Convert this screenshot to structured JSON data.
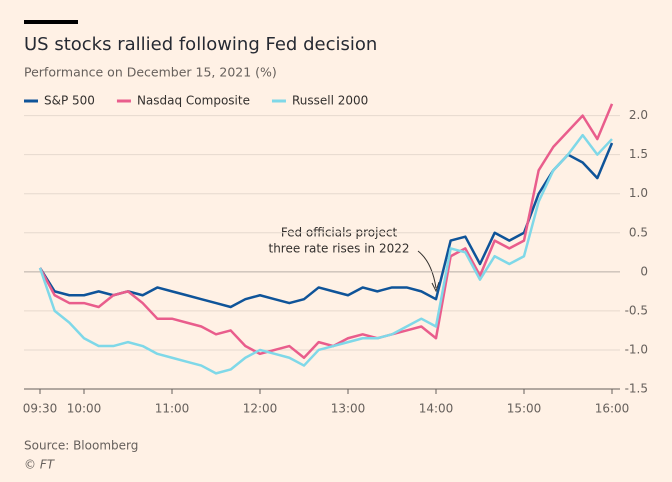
{
  "chart_data": {
    "type": "line",
    "title": "US stocks rallied following Fed decision",
    "subtitle": "Performance on December 15, 2021 (%)",
    "source": "Source: Bloomberg",
    "credit": "© FT",
    "annotation": [
      "Fed officials project",
      "three rate rises in 2022"
    ],
    "x": [
      "09:30",
      "09:40",
      "09:50",
      "10:00",
      "10:10",
      "10:20",
      "10:30",
      "10:40",
      "10:50",
      "11:00",
      "11:10",
      "11:20",
      "11:30",
      "11:40",
      "11:50",
      "12:00",
      "12:10",
      "12:20",
      "12:30",
      "12:40",
      "12:50",
      "13:00",
      "13:10",
      "13:20",
      "13:30",
      "13:40",
      "13:50",
      "14:00",
      "14:10",
      "14:20",
      "14:30",
      "14:40",
      "14:50",
      "15:00",
      "15:10",
      "15:20",
      "15:30",
      "15:40",
      "15:50",
      "16:00"
    ],
    "xticks": [
      "09:30",
      "10:00",
      "11:00",
      "12:00",
      "13:00",
      "14:00",
      "15:00",
      "16:00"
    ],
    "series": [
      {
        "name": "S&P 500",
        "color": "#0f5499",
        "values": [
          0.05,
          -0.25,
          -0.3,
          -0.3,
          -0.25,
          -0.3,
          -0.25,
          -0.3,
          -0.2,
          -0.25,
          -0.3,
          -0.35,
          -0.4,
          -0.45,
          -0.35,
          -0.3,
          -0.35,
          -0.4,
          -0.35,
          -0.2,
          -0.25,
          -0.3,
          -0.2,
          -0.25,
          -0.2,
          -0.2,
          -0.25,
          -0.35,
          0.4,
          0.45,
          0.1,
          0.5,
          0.4,
          0.5,
          1.0,
          1.3,
          1.5,
          1.4,
          1.2,
          1.65
        ]
      },
      {
        "name": "Nasdaq Composite",
        "color": "#e95d8c",
        "values": [
          0.05,
          -0.3,
          -0.4,
          -0.4,
          -0.45,
          -0.3,
          -0.25,
          -0.4,
          -0.6,
          -0.6,
          -0.65,
          -0.7,
          -0.8,
          -0.75,
          -0.95,
          -1.05,
          -1.0,
          -0.95,
          -1.1,
          -0.9,
          -0.95,
          -0.85,
          -0.8,
          -0.85,
          -0.8,
          -0.75,
          -0.7,
          -0.85,
          0.2,
          0.3,
          -0.05,
          0.4,
          0.3,
          0.4,
          1.3,
          1.6,
          1.8,
          2.0,
          1.7,
          2.15
        ]
      },
      {
        "name": "Russell 2000",
        "color": "#7fd8e8",
        "values": [
          0.05,
          -0.5,
          -0.65,
          -0.85,
          -0.95,
          -0.95,
          -0.9,
          -0.95,
          -1.05,
          -1.1,
          -1.15,
          -1.2,
          -1.3,
          -1.25,
          -1.1,
          -1.0,
          -1.05,
          -1.1,
          -1.2,
          -1.0,
          -0.95,
          -0.9,
          -0.85,
          -0.85,
          -0.8,
          -0.7,
          -0.6,
          -0.7,
          0.3,
          0.25,
          -0.1,
          0.2,
          0.1,
          0.2,
          0.9,
          1.3,
          1.5,
          1.75,
          1.5,
          1.7
        ]
      }
    ],
    "ylim": [
      -1.5,
      2.2
    ],
    "yticks": [
      {
        "value": 2,
        "label": "2.0"
      },
      1.5,
      {
        "value": 1,
        "label": "1.0"
      },
      0.5,
      0,
      -0.5,
      {
        "value": -1,
        "label": "-1.0"
      },
      -1.5
    ],
    "grid": true
  }
}
